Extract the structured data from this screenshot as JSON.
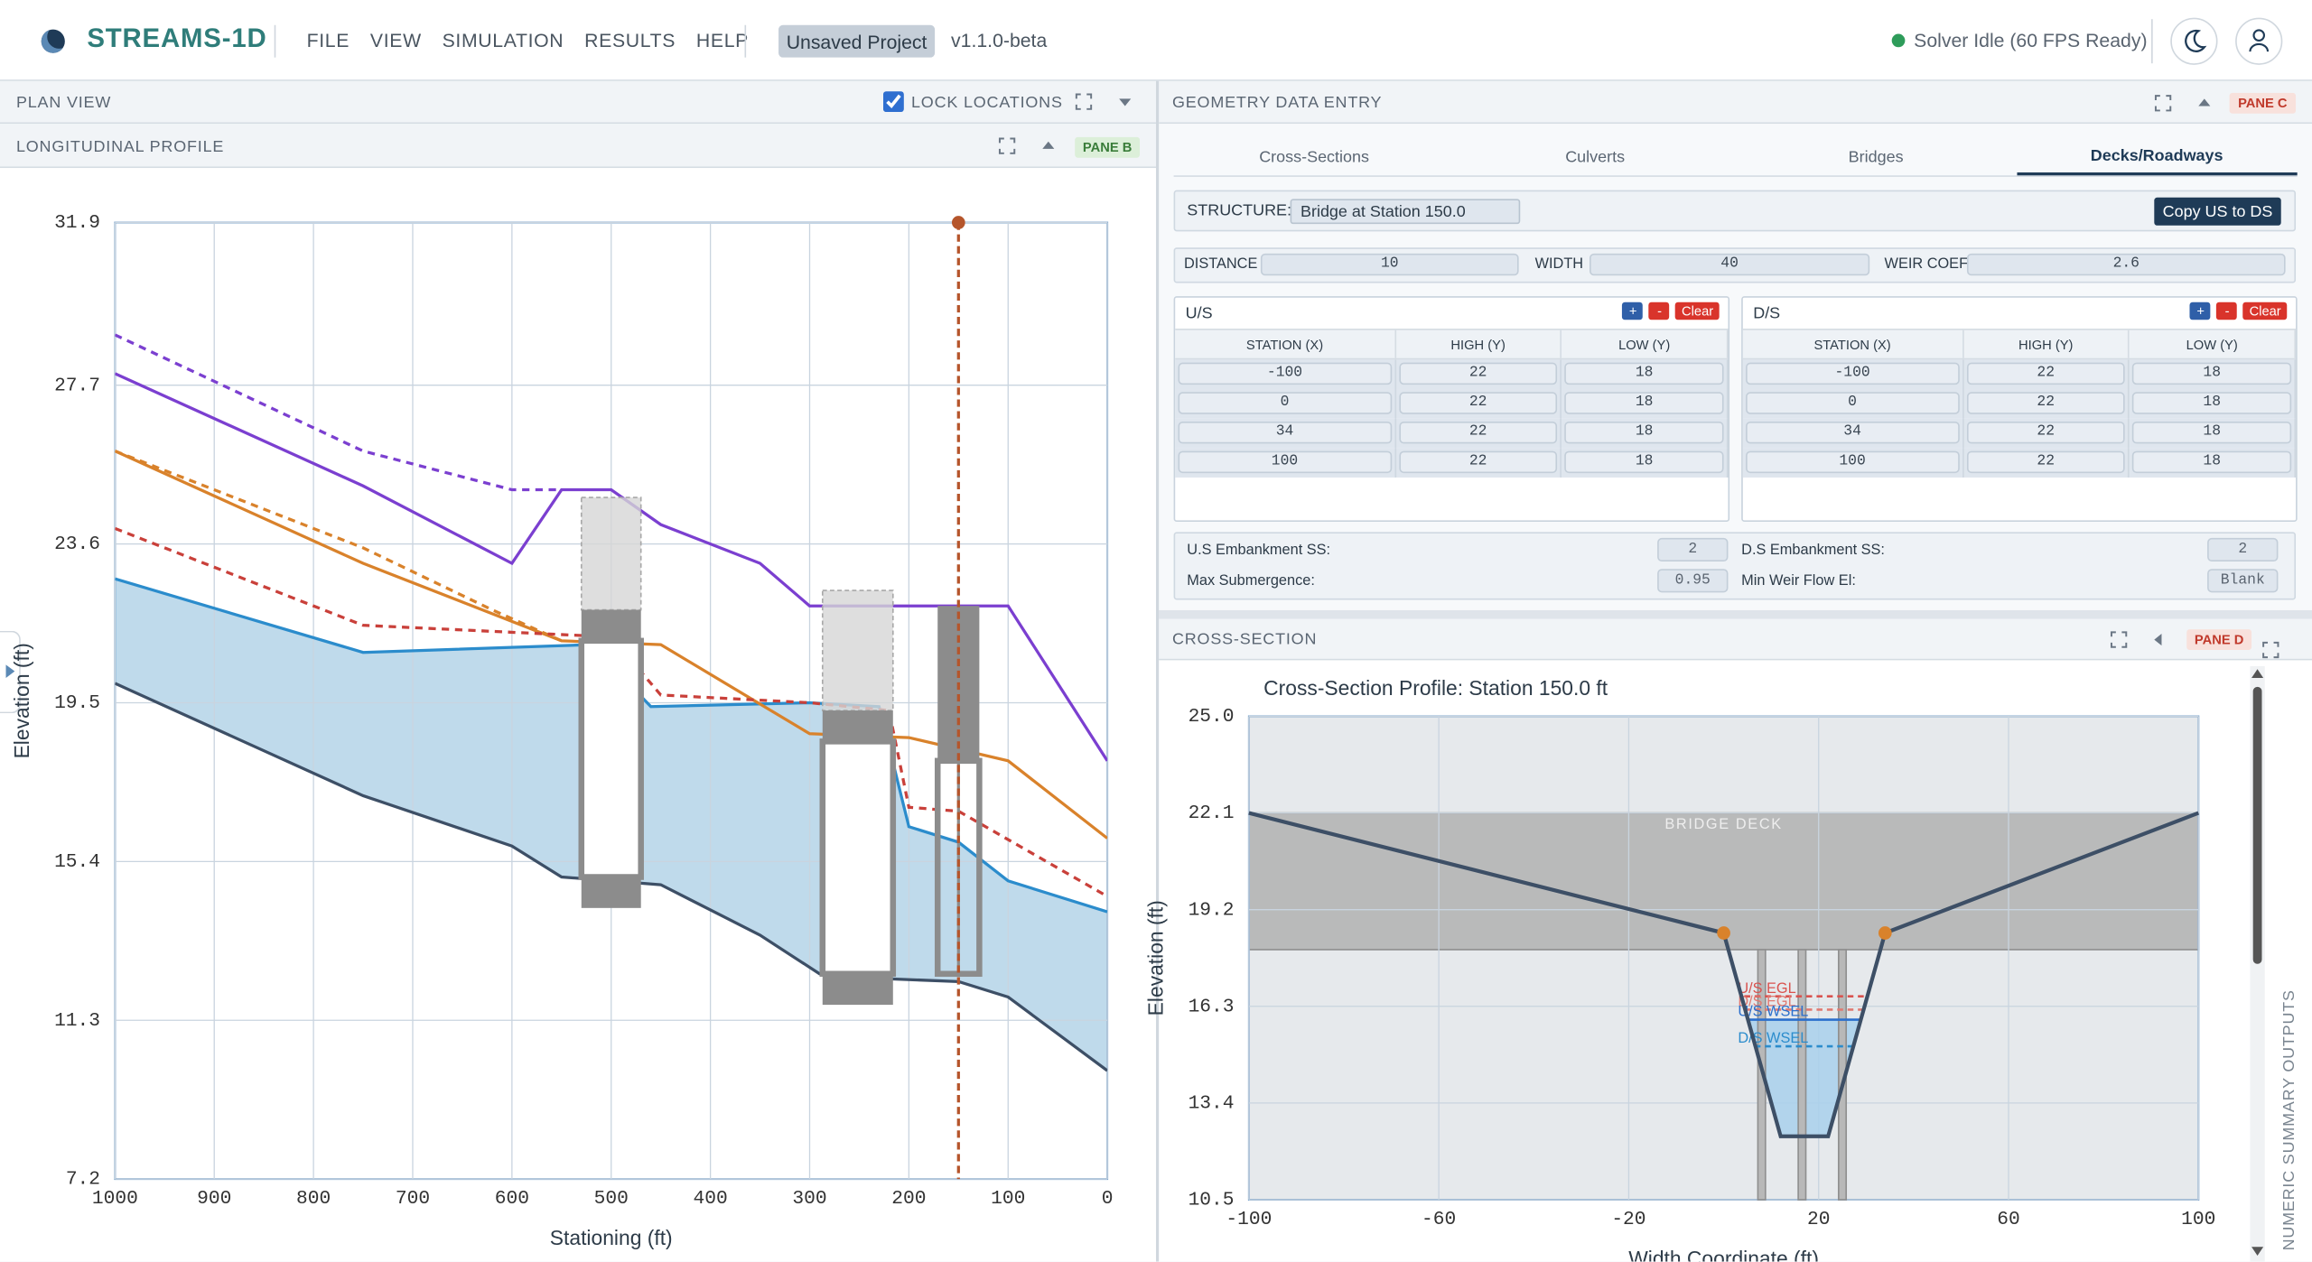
{
  "header": {
    "app_name": "STREAMS-1D",
    "menu": [
      "FILE",
      "VIEW",
      "SIMULATION",
      "RESULTS",
      "HELP"
    ],
    "project": "Unsaved Project",
    "version": "v1.1.0-beta",
    "status": "Solver Idle (60 FPS Ready)"
  },
  "plan_view": {
    "title": "PLAN VIEW",
    "lock_label": "LOCK LOCATIONS",
    "locked": true
  },
  "profile": {
    "title": "LONGITUDINAL PROFILE",
    "badge": "PANE B"
  },
  "geometry": {
    "title": "GEOMETRY DATA ENTRY",
    "badge": "PANE C",
    "tabs": [
      "Cross-Sections",
      "Culverts",
      "Bridges",
      "Decks/Roadways"
    ],
    "active_tab": 3,
    "structure_label": "STRUCTURE:",
    "structure": "Bridge at Station 150.0",
    "copy_button": "Copy US to DS",
    "fields": [
      {
        "label": "DISTANCE",
        "value": 10
      },
      {
        "label": "WIDTH",
        "value": 40
      },
      {
        "label": "WEIR COEF",
        "value": 2.6
      }
    ],
    "tables": [
      {
        "title": "U/S",
        "buttons": [
          "+",
          "-",
          "Clear"
        ],
        "columns": [
          "STATION (X)",
          "HIGH (Y)",
          "LOW (Y)"
        ],
        "rows": [
          [
            -100,
            22,
            18
          ],
          [
            0,
            22,
            18
          ],
          [
            34,
            22,
            18
          ],
          [
            100,
            22,
            18
          ]
        ]
      },
      {
        "title": "D/S",
        "buttons": [
          "+",
          "-",
          "Clear"
        ],
        "columns": [
          "STATION (X)",
          "HIGH (Y)",
          "LOW (Y)"
        ],
        "rows": [
          [
            -100,
            22,
            18
          ],
          [
            0,
            22,
            18
          ],
          [
            34,
            22,
            18
          ],
          [
            100,
            22,
            18
          ]
        ]
      }
    ],
    "embankment": [
      {
        "label": "U.S Embankment SS:",
        "value": 2
      },
      {
        "label": "D.S Embankment SS:",
        "value": 2
      },
      {
        "label": "Max Submergence:",
        "value": 0.95
      },
      {
        "label": "Min Weir Flow El:",
        "value": "Blank"
      }
    ]
  },
  "cross_section": {
    "title": "CROSS-SECTION",
    "badge": "PANE D",
    "side_label": "NUMERIC SUMMARY OUTPUTS"
  },
  "chart_data": [
    {
      "type": "profile",
      "xlabel": "Stationing (ft)",
      "ylabel": "Elevation (ft)",
      "xlim": [
        1000,
        0
      ],
      "ylim": [
        7.2,
        31.9
      ],
      "xticks": [
        1000,
        900,
        800,
        700,
        600,
        500,
        400,
        300,
        200,
        100,
        0
      ],
      "yticks": [
        7.2,
        11.3,
        15.4,
        19.5,
        23.6,
        27.7,
        31.9
      ],
      "grid": true,
      "series": [
        {
          "color": "#3d4f66",
          "dashed": false,
          "x": [
            1000,
            750,
            600,
            550,
            500,
            450,
            350,
            290,
            250,
            150,
            100,
            0
          ],
          "values": [
            20.0,
            17.1,
            15.8,
            15.0,
            14.9,
            14.8,
            13.5,
            12.5,
            12.4,
            12.3,
            11.9,
            10.0
          ]
        },
        {
          "color": "#2b8ccc",
          "dashed": false,
          "fill": "#b4d3e8",
          "fill_to": 0,
          "x": [
            1000,
            750,
            520,
            460,
            300,
            230,
            200,
            150,
            100,
            0
          ],
          "values": [
            22.7,
            20.8,
            21.0,
            19.4,
            19.5,
            19.4,
            16.3,
            15.9,
            14.9,
            14.1
          ]
        },
        {
          "color": "#d9822b",
          "dashed": false,
          "x": [
            1000,
            750,
            550,
            450,
            300,
            200,
            100,
            0
          ],
          "values": [
            26.0,
            23.1,
            21.1,
            21.0,
            18.7,
            18.6,
            18.0,
            16.0
          ]
        },
        {
          "color": "#d9822b",
          "dashed": true,
          "x": [
            1000,
            750,
            620,
            550
          ],
          "values": [
            26.0,
            23.5,
            21.9,
            21.1
          ]
        },
        {
          "color": "#c9403a",
          "dashed": true,
          "x": [
            1000,
            750,
            500,
            450,
            300,
            220,
            200,
            150,
            0
          ],
          "values": [
            24.0,
            21.5,
            21.2,
            19.7,
            19.5,
            19.3,
            16.8,
            16.7,
            14.5
          ]
        },
        {
          "color": "#7b3fd0",
          "dashed": false,
          "x": [
            1000,
            750,
            600,
            550,
            500,
            450,
            350,
            300,
            100,
            0
          ],
          "values": [
            28.0,
            25.1,
            23.1,
            25.0,
            25.0,
            24.1,
            23.1,
            22.0,
            22.0,
            18.0
          ]
        },
        {
          "color": "#7b3fd0",
          "dashed": true,
          "x": [
            1000,
            750,
            600,
            550
          ],
          "values": [
            29.0,
            26.0,
            25.0,
            25.0
          ]
        }
      ],
      "structures": [
        {
          "x": [
            530,
            470
          ],
          "ghost": [
            21.9,
            24.8
          ],
          "deck": [
            21.1,
            21.9
          ],
          "opening": [
            15.0,
            21.1
          ],
          "footing": [
            14.2,
            15.0
          ]
        },
        {
          "x": [
            287,
            216
          ],
          "ghost": [
            19.3,
            22.4
          ],
          "deck": [
            18.5,
            19.3
          ],
          "opening": [
            12.5,
            18.5
          ],
          "footing": [
            11.7,
            12.5
          ]
        },
        {
          "x": [
            171,
            129
          ],
          "deck": [
            18.0,
            22.0
          ],
          "opening": [
            12.5,
            18.0
          ]
        }
      ],
      "cut_line": {
        "x": 150,
        "color": "#b5552b"
      }
    },
    {
      "type": "section",
      "title": "Cross-Section Profile: Station 150.0 ft",
      "xlabel": "Width Coordinate (ft)",
      "ylabel": "Elevation (ft)",
      "xlim": [
        -100,
        100
      ],
      "ylim": [
        10.5,
        25
      ],
      "xticks": [
        -100,
        -60,
        -20,
        20,
        60,
        100
      ],
      "yticks": [
        10.5,
        13.4,
        16.3,
        19.2,
        22.1,
        {
          "value": 25,
          "label": "25.0"
        }
      ],
      "grid": true,
      "ground": {
        "color": "#3d4f66",
        "x": [
          -100,
          0,
          12,
          22,
          34,
          100
        ],
        "values": [
          22.1,
          18.5,
          12.4,
          12.4,
          18.5,
          22.1
        ]
      },
      "deck": {
        "label": "BRIDGE DECK",
        "low": 18.0,
        "high": 22.1,
        "color": "#a9a9a9"
      },
      "piers": {
        "x": [
          8,
          16.5,
          25
        ],
        "width": 1.6,
        "color": "#b8b8b8"
      },
      "chord_points": {
        "x": [
          0,
          34
        ],
        "values": [
          18.5,
          18.5
        ],
        "color": "#d9822b"
      },
      "levels": [
        {
          "name": "U/S EGL",
          "value": 16.6,
          "color": "#d9534f",
          "dashed": true
        },
        {
          "name": "D/S EGL",
          "value": 16.2,
          "color": "#e07a72",
          "dashed": true
        },
        {
          "name": "U/S WSEL",
          "value": 15.9,
          "color": "#2b6fcc",
          "dashed": false,
          "fill": "#a8d0ec"
        },
        {
          "name": "D/S WSEL",
          "value": 15.1,
          "color": "#2b8ccc",
          "dashed": true
        }
      ]
    }
  ]
}
